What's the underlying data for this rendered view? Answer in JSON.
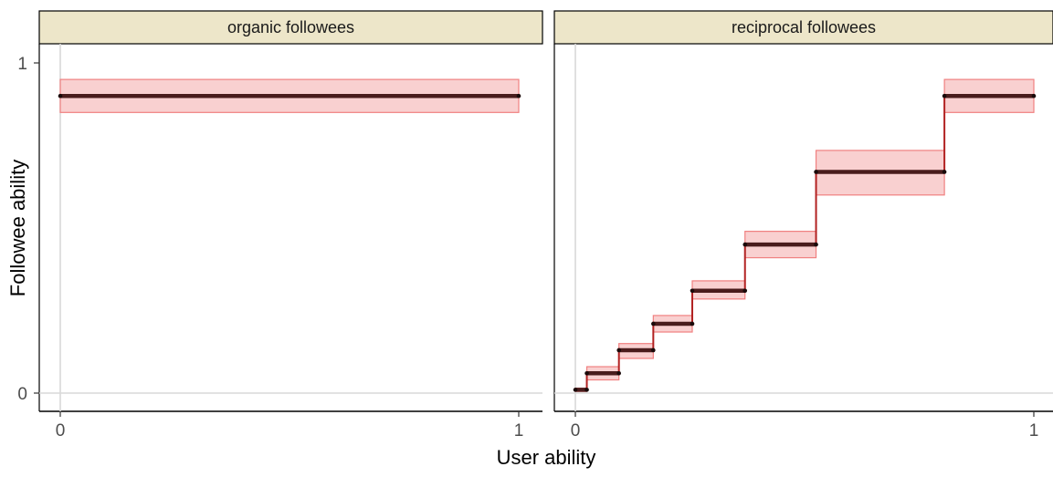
{
  "chart_data": {
    "type": "line",
    "xlabel": "User ability",
    "ylabel": "Followee ability",
    "xlim": [
      0,
      1
    ],
    "ylim": [
      0,
      1
    ],
    "x_ticks": [
      "0",
      "1"
    ],
    "y_ticks": [
      "0",
      "1"
    ],
    "grid": "vertical at x=0, horizontal at y=0",
    "colors": {
      "strip_fill": "#ede6c9",
      "band_fill": "#f8c8c8",
      "band_stroke": "#f08080",
      "step_line": "#b22222",
      "segment_line": "#4a1c1c",
      "grid": "#d9d9d9"
    },
    "panels": [
      {
        "title": "organic followees",
        "steps": [
          {
            "x0": 0.0,
            "x1": 1.0,
            "y": 0.9,
            "lo": 0.85,
            "hi": 0.95
          }
        ]
      },
      {
        "title": "reciprocal followees",
        "steps": [
          {
            "x0": 0.0,
            "x1": 0.025,
            "y": 0.01,
            "lo": 0.005,
            "hi": 0.015
          },
          {
            "x0": 0.025,
            "x1": 0.095,
            "y": 0.06,
            "lo": 0.04,
            "hi": 0.08
          },
          {
            "x0": 0.095,
            "x1": 0.17,
            "y": 0.13,
            "lo": 0.105,
            "hi": 0.15
          },
          {
            "x0": 0.17,
            "x1": 0.255,
            "y": 0.21,
            "lo": 0.185,
            "hi": 0.235
          },
          {
            "x0": 0.255,
            "x1": 0.37,
            "y": 0.31,
            "lo": 0.285,
            "hi": 0.34
          },
          {
            "x0": 0.37,
            "x1": 0.525,
            "y": 0.45,
            "lo": 0.41,
            "hi": 0.49
          },
          {
            "x0": 0.525,
            "x1": 0.805,
            "y": 0.67,
            "lo": 0.6,
            "hi": 0.735
          },
          {
            "x0": 0.805,
            "x1": 1.0,
            "y": 0.9,
            "lo": 0.85,
            "hi": 0.95
          }
        ]
      }
    ]
  }
}
